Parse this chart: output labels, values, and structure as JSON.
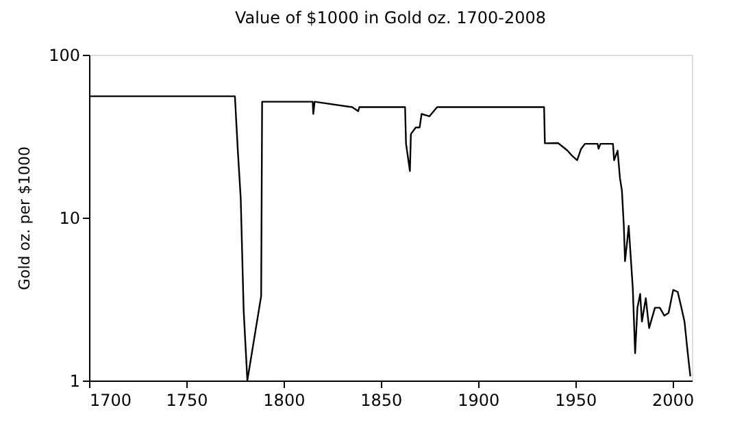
{
  "chart_data": {
    "type": "line",
    "title": "Value of $1000 in Gold oz. 1700-2008",
    "ylabel": "Gold oz. per $1000",
    "x": [
      1700,
      1775,
      1776.5,
      1778,
      1779.5,
      1781.4,
      1788.5,
      1789,
      1815,
      1815.3,
      1816,
      1835.3,
      1838.4,
      1839,
      1862.5,
      1863,
      1865,
      1865.5,
      1868,
      1870,
      1871,
      1875,
      1879,
      1934,
      1934.4,
      1941.2,
      1946,
      1948.5,
      1951,
      1953,
      1955,
      1961.5,
      1962,
      1963,
      1969.4,
      1970,
      1971.8,
      1973,
      1974,
      1975,
      1975.6,
      1976.8,
      1977.5,
      1978.4,
      1979.6,
      1980.8,
      1982,
      1983.4,
      1984.3,
      1986.3,
      1988,
      1991,
      1993.5,
      1995.8,
      1998,
      2000.4,
      2002.7,
      2004.6,
      2006.2,
      2007.8,
      2009.2
    ],
    "series": [
      {
        "color": "#000000",
        "values": [
          55.6,
          55.6,
          25.8,
          13.1,
          2.7,
          1,
          3.3,
          51.5,
          51.5,
          43.3,
          51.5,
          47.7,
          45,
          47.7,
          47.7,
          28.4,
          19.3,
          32.6,
          35.8,
          35.8,
          43.3,
          41.9,
          47.7,
          47.7,
          28.6,
          28.7,
          25.8,
          23.9,
          22.5,
          26.4,
          28.4,
          28.4,
          26.5,
          28.4,
          28.4,
          22.5,
          25.8,
          17.5,
          14.7,
          8.9,
          5.4,
          7.3,
          8.9,
          6.1,
          3.7,
          1.47,
          2.8,
          3.4,
          2.3,
          3.2,
          2.1,
          2.8,
          2.8,
          2.5,
          2.6,
          3.6,
          3.5,
          2.8,
          2.3,
          1.5,
          1.06
        ]
      }
    ],
    "xlim": [
      1700,
      2010
    ],
    "xticks": [
      1700,
      1750,
      1800,
      1850,
      1900,
      1950,
      2000
    ],
    "ylim": [
      1,
      100
    ],
    "yticks": [
      1,
      10,
      100
    ],
    "log": "y",
    "grid": false,
    "marker": "none",
    "line_style": "solid"
  }
}
